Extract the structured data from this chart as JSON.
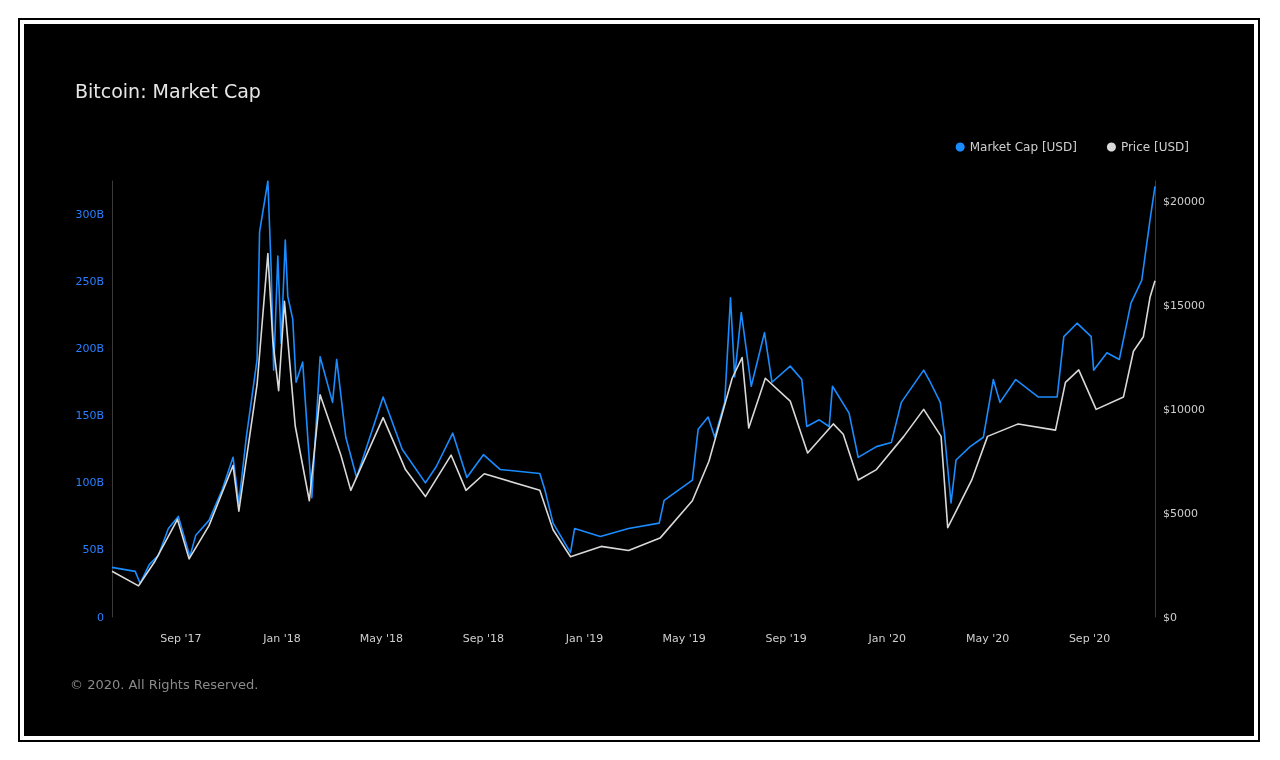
{
  "chart_data": {
    "type": "line",
    "title": "Bitcoin: Market Cap",
    "annotations": [
      "© 2020. All Rights Reserved."
    ],
    "xticks": [
      {
        "value": "2017-09-01",
        "label": "Sep '17"
      },
      {
        "value": "2018-01-01",
        "label": "Jan '18"
      },
      {
        "value": "2018-05-01",
        "label": "May '18"
      },
      {
        "value": "2018-09-01",
        "label": "Sep '18"
      },
      {
        "value": "2019-01-01",
        "label": "Jan '19"
      },
      {
        "value": "2019-05-01",
        "label": "May '19"
      },
      {
        "value": "2019-09-01",
        "label": "Sep '19"
      },
      {
        "value": "2020-01-01",
        "label": "Jan '20"
      },
      {
        "value": "2020-05-01",
        "label": "May '20"
      },
      {
        "value": "2020-09-01",
        "label": "Sep '20"
      }
    ],
    "xlim": [
      "2017-06-10",
      "2020-11-19"
    ],
    "ylim": [
      0,
      325
    ],
    "yticks": [
      0,
      {
        "value": 50,
        "label": "50B"
      },
      {
        "value": 100,
        "label": "100B"
      },
      {
        "value": 150,
        "label": "150B"
      },
      {
        "value": 200,
        "label": "200B"
      },
      {
        "value": 250,
        "label": "250B"
      },
      {
        "value": 300,
        "label": "300B"
      }
    ],
    "y2lim": [
      0,
      21000
    ],
    "y2ticks": [
      {
        "value": 0,
        "label": "$0"
      },
      {
        "value": 5000,
        "label": "$5000"
      },
      {
        "value": 10000,
        "label": "$10000"
      },
      {
        "value": 15000,
        "label": "$15000"
      },
      {
        "value": 20000,
        "label": "$20000"
      }
    ],
    "grid": false,
    "legend": "top right",
    "marker": "none",
    "line_style": "solid",
    "series": [
      {
        "name": "Market Cap [USD]",
        "color": "#1a8cff",
        "x": [
          "2017-06-10",
          "2017-07-08",
          "2017-07-14",
          "2017-07-25",
          "2017-08-05",
          "2017-08-17",
          "2017-08-29",
          "2017-09-12",
          "2017-09-19",
          "2017-10-05",
          "2017-10-21",
          "2017-11-03",
          "2017-11-10",
          "2017-11-19",
          "2017-12-02",
          "2017-12-05",
          "2017-12-15",
          "2017-12-19",
          "2017-12-22",
          "2017-12-27",
          "2017-12-31",
          "2018-01-05",
          "2018-01-08",
          "2018-01-14",
          "2018-01-18",
          "2018-01-26",
          "2018-02-06",
          "2018-02-16",
          "2018-03-03",
          "2018-03-08",
          "2018-03-19",
          "2018-04-01",
          "2018-04-08",
          "2018-05-03",
          "2018-05-26",
          "2018-06-23",
          "2018-07-06",
          "2018-07-26",
          "2018-08-12",
          "2018-09-01",
          "2018-09-21",
          "2018-11-08",
          "2018-11-14",
          "2018-11-24",
          "2018-12-15",
          "2018-12-20",
          "2019-01-20",
          "2019-02-23",
          "2019-04-01",
          "2019-04-07",
          "2019-05-11",
          "2019-05-18",
          "2019-05-30",
          "2019-06-07",
          "2019-06-19",
          "2019-06-26",
          "2019-07-01",
          "2019-07-09",
          "2019-07-21",
          "2019-08-06",
          "2019-08-15",
          "2019-09-06",
          "2019-09-20",
          "2019-09-26",
          "2019-10-11",
          "2019-10-23",
          "2019-10-27",
          "2019-11-16",
          "2019-11-27",
          "2019-12-19",
          "2020-01-06",
          "2020-01-18",
          "2020-02-14",
          "2020-02-22",
          "2020-03-05",
          "2020-03-10",
          "2020-03-18",
          "2020-03-24",
          "2020-04-10",
          "2020-04-26",
          "2020-05-08",
          "2020-05-16",
          "2020-06-04",
          "2020-07-01",
          "2020-07-24",
          "2020-08-01",
          "2020-08-17",
          "2020-09-03",
          "2020-09-06",
          "2020-09-22",
          "2020-10-07",
          "2020-10-21",
          "2020-11-03",
          "2020-11-07",
          "2020-11-13",
          "2020-11-19"
        ],
        "values": [
          37,
          34,
          25,
          39,
          46,
          66,
          75,
          45,
          61,
          72,
          95,
          119,
          85,
          134,
          192,
          287,
          325,
          259,
          184,
          269,
          204,
          281,
          239,
          222,
          175,
          190,
          89,
          194,
          160,
          192,
          134,
          104,
          117,
          164,
          125,
          100,
          112,
          137,
          104,
          121,
          110,
          107,
          95,
          70,
          48,
          66,
          60,
          66,
          70,
          87,
          102,
          140,
          149,
          134,
          160,
          238,
          179,
          227,
          172,
          212,
          175,
          187,
          177,
          142,
          147,
          142,
          172,
          152,
          119,
          127,
          130,
          160,
          184,
          175,
          160,
          137,
          85,
          117,
          127,
          134,
          177,
          160,
          177,
          164,
          164,
          209,
          219,
          209,
          184,
          197,
          192,
          234,
          251,
          269,
          296,
          321
        ]
      },
      {
        "name": "Price [USD]",
        "color": "#d9d9d9",
        "axis": "y2",
        "x": [
          "2017-06-10",
          "2017-07-12",
          "2017-08-01",
          "2017-08-28",
          "2017-09-11",
          "2017-10-05",
          "2017-11-03",
          "2017-11-10",
          "2017-12-02",
          "2017-12-15",
          "2017-12-21",
          "2017-12-28",
          "2018-01-04",
          "2018-01-17",
          "2018-02-03",
          "2018-02-16",
          "2018-03-13",
          "2018-03-25",
          "2018-05-03",
          "2018-05-30",
          "2018-06-23",
          "2018-07-24",
          "2018-08-11",
          "2018-09-02",
          "2018-11-08",
          "2018-11-24",
          "2018-12-15",
          "2019-01-21",
          "2019-02-23",
          "2019-04-02",
          "2019-05-11",
          "2019-05-31",
          "2019-06-28",
          "2019-07-10",
          "2019-07-18",
          "2019-08-07",
          "2019-09-06",
          "2019-09-27",
          "2019-10-28",
          "2019-11-09",
          "2019-11-27",
          "2019-12-19",
          "2020-01-21",
          "2020-02-14",
          "2020-03-06",
          "2020-03-14",
          "2020-04-12",
          "2020-05-01",
          "2020-06-07",
          "2020-07-22",
          "2020-08-03",
          "2020-08-19",
          "2020-09-09",
          "2020-10-12",
          "2020-10-24",
          "2020-11-05",
          "2020-11-13",
          "2020-11-19"
        ],
        "values": [
          2200,
          1500,
          2700,
          4700,
          2800,
          4400,
          7300,
          5100,
          11200,
          17500,
          13300,
          10900,
          15200,
          9200,
          5600,
          10700,
          7800,
          6100,
          9600,
          7100,
          5800,
          7800,
          6100,
          6900,
          6100,
          4200,
          2900,
          3400,
          3200,
          3800,
          5600,
          7500,
          11500,
          12500,
          9100,
          11500,
          10400,
          7900,
          9300,
          8800,
          6600,
          7100,
          8700,
          10000,
          8700,
          4300,
          6600,
          8700,
          9300,
          9000,
          11300,
          11900,
          10000,
          10600,
          12800,
          13500,
          15400,
          16200
        ]
      }
    ]
  }
}
